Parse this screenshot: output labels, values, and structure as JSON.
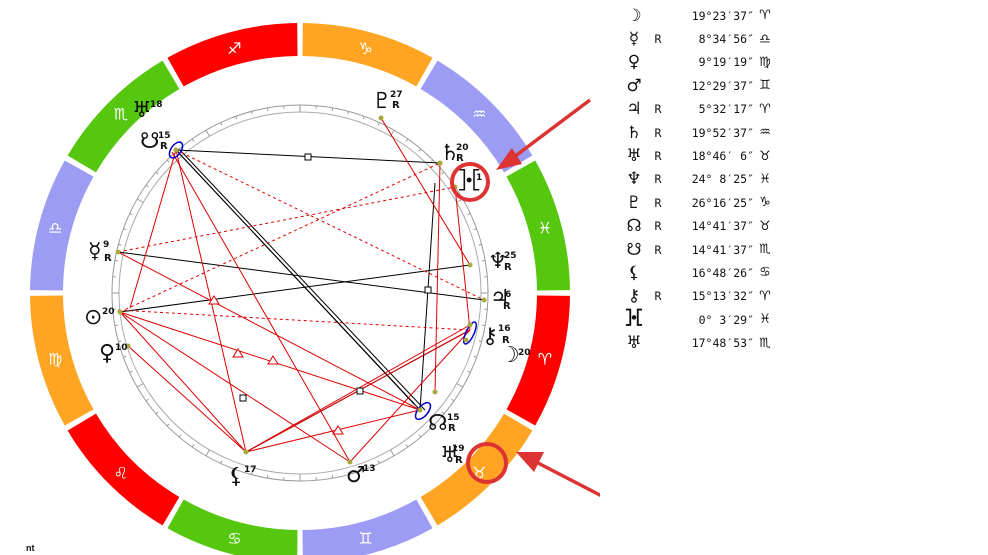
{
  "colors": {
    "fire": "#ff0000",
    "earth": "#ffa423",
    "air": "#9c9cf4",
    "water": "#55c70e",
    "aspect_hard": "#000000",
    "aspect_soft": "#dd0000",
    "highlight": "#dd3333",
    "ring_marker": "#0000cc",
    "planet_dot": "#a9a93e"
  },
  "zodiac_ring": [
    {
      "sign": "Sagittarius",
      "glyph": "♐",
      "element": "fire"
    },
    {
      "sign": "Capricorn",
      "glyph": "♑",
      "element": "earth"
    },
    {
      "sign": "Aquarius",
      "glyph": "♒",
      "element": "air"
    },
    {
      "sign": "Pisces",
      "glyph": "♓",
      "element": "water"
    },
    {
      "sign": "Aries",
      "glyph": "♈",
      "element": "fire"
    },
    {
      "sign": "Taurus",
      "glyph": "♉",
      "element": "earth"
    },
    {
      "sign": "Gemini",
      "glyph": "♊",
      "element": "air"
    },
    {
      "sign": "Cancer",
      "glyph": "♋",
      "element": "water"
    },
    {
      "sign": "Leo",
      "glyph": "♌",
      "element": "fire"
    },
    {
      "sign": "Virgo",
      "glyph": "♍",
      "element": "earth"
    },
    {
      "sign": "Libra",
      "glyph": "♎",
      "element": "air"
    },
    {
      "sign": "Scorpio",
      "glyph": "♏",
      "element": "water"
    }
  ],
  "chart_planets": [
    {
      "id": "moon",
      "glyph": "☽",
      "degree": "20",
      "retrograde": false
    },
    {
      "id": "mercury",
      "glyph": "☿",
      "degree": "9",
      "retrograde": true
    },
    {
      "id": "venus",
      "glyph": "♀",
      "degree": "10",
      "retrograde": false
    },
    {
      "id": "sun",
      "glyph": "⊙",
      "degree": "20",
      "retrograde": false
    },
    {
      "id": "mars",
      "glyph": "♂",
      "degree": "13",
      "retrograde": false
    },
    {
      "id": "jupiter",
      "glyph": "♃",
      "degree": "6",
      "retrograde": true
    },
    {
      "id": "saturn",
      "glyph": "♄",
      "degree": "20",
      "retrograde": true
    },
    {
      "id": "uranus",
      "glyph": "♅",
      "degree": "19",
      "retrograde": true
    },
    {
      "id": "neptune",
      "glyph": "♆",
      "degree": "25",
      "retrograde": true
    },
    {
      "id": "pluto",
      "glyph": "♇",
      "degree": "27",
      "retrograde": true
    },
    {
      "id": "north-node",
      "glyph": "☊",
      "degree": "15",
      "retrograde": true
    },
    {
      "id": "south-node",
      "glyph": "☋",
      "degree": "15",
      "retrograde": true
    },
    {
      "id": "lilith",
      "glyph": "⚸",
      "degree": "17",
      "retrograde": false
    },
    {
      "id": "chiron",
      "glyph": "⚷",
      "degree": "16",
      "retrograde": true
    },
    {
      "id": "proserpina",
      "glyph": "⯘",
      "degree": "1",
      "retrograde": false
    },
    {
      "id": "vertex",
      "glyph": "♅",
      "degree": "18",
      "retrograde": false
    }
  ],
  "positions": [
    {
      "glyph": "☽",
      "retro": "",
      "degree": "19°23′37″",
      "sign": "♈"
    },
    {
      "glyph": "☿",
      "retro": "R",
      "degree": "8°34′56″",
      "sign": "♎"
    },
    {
      "glyph": "♀",
      "retro": "",
      "degree": "9°19′19″",
      "sign": "♍"
    },
    {
      "glyph": "♂",
      "retro": "",
      "degree": "12°29′37″",
      "sign": "♊"
    },
    {
      "glyph": "♃",
      "retro": "R",
      "degree": "5°32′17″",
      "sign": "♈"
    },
    {
      "glyph": "♄",
      "retro": "R",
      "degree": "19°52′37″",
      "sign": "♒"
    },
    {
      "glyph": "♅",
      "retro": "R",
      "degree": "18°46′ 6″",
      "sign": "♉"
    },
    {
      "glyph": "♆",
      "retro": "R",
      "degree": "24° 8′25″",
      "sign": "♓"
    },
    {
      "glyph": "♇",
      "retro": "R",
      "degree": "26°16′25″",
      "sign": "♑"
    },
    {
      "glyph": "☊",
      "retro": "R",
      "degree": "14°41′37″",
      "sign": "♉"
    },
    {
      "glyph": "☋",
      "retro": "R",
      "degree": "14°41′37″",
      "sign": "♏"
    },
    {
      "glyph": "⚸",
      "retro": "",
      "degree": "16°48′26″",
      "sign": "♋"
    },
    {
      "glyph": "⚷",
      "retro": "R",
      "degree": "15°13′32″",
      "sign": "♈"
    },
    {
      "glyph": "⯘",
      "retro": "",
      "degree": "0° 3′29″",
      "sign": "♓"
    },
    {
      "glyph": "♅",
      "retro": "",
      "degree": "17°48′53″",
      "sign": "♏"
    }
  ],
  "footer_fragment": "nt"
}
